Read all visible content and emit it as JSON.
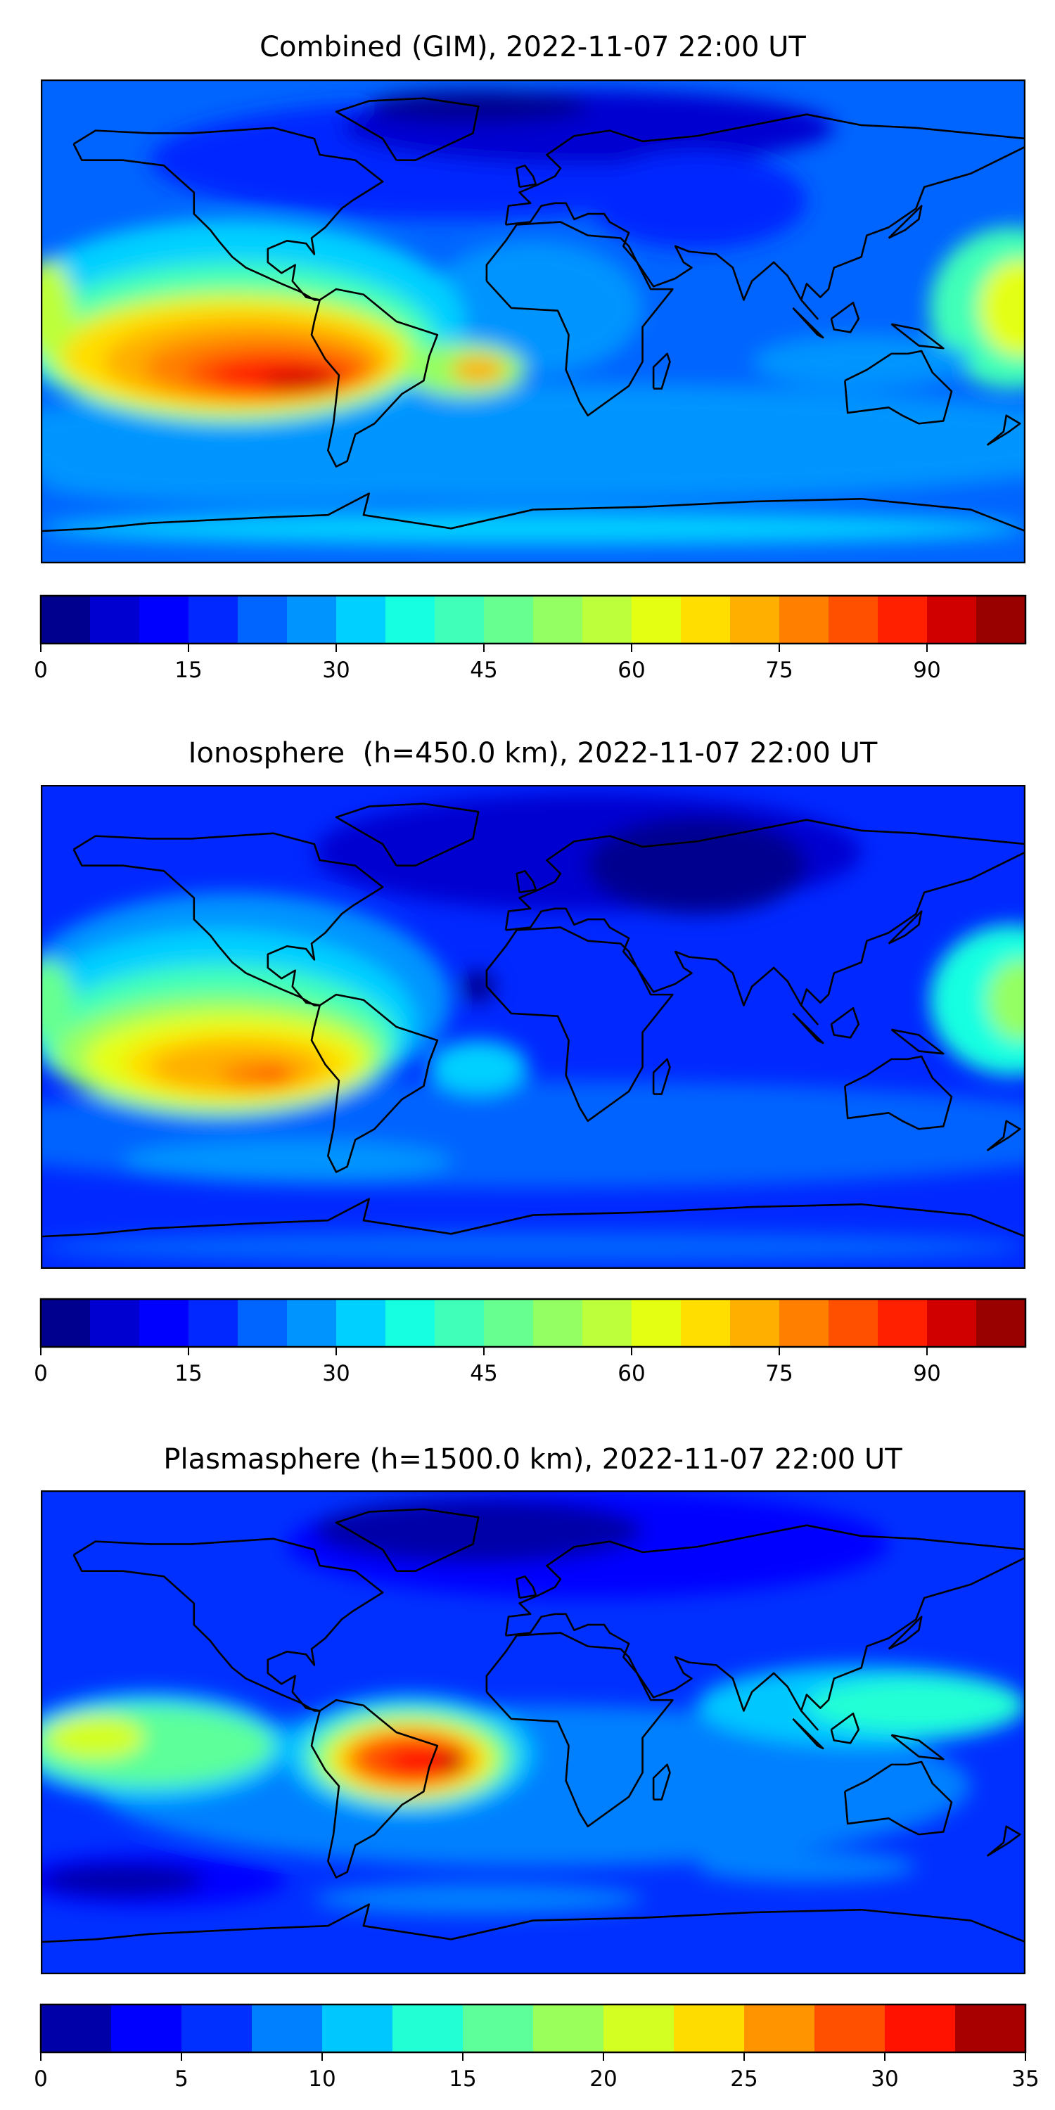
{
  "chart_data": [
    {
      "type": "heatmap",
      "title": "Combined (GIM), 2022-11-07 22:00 UT",
      "xlabel": "",
      "ylabel": "",
      "lon_range": [
        -180,
        180
      ],
      "lat_range": [
        -90,
        90
      ],
      "colorbar": {
        "vmin": 0,
        "vmax": 100,
        "step": 5,
        "ticks": [
          0,
          15,
          30,
          45,
          60,
          75,
          90
        ],
        "colors": [
          "#00008f",
          "#0000d0",
          "#0000ff",
          "#0028ff",
          "#0064ff",
          "#0094ff",
          "#00d0ff",
          "#16ffe1",
          "#40ffb8",
          "#66ff90",
          "#94ff62",
          "#bcff3a",
          "#e4ff12",
          "#ffde00",
          "#ffaf00",
          "#ff7f00",
          "#ff5000",
          "#ff2000",
          "#d00000",
          "#990000"
        ]
      },
      "features": "max ~95 over eastern Pacific/South America (~-100,-18); low (<10) over North Atlantic/Arctic"
    },
    {
      "type": "heatmap",
      "title": "Ionosphere  (h=450.0 km), 2022-11-07 22:00 UT",
      "xlabel": "",
      "ylabel": "",
      "lon_range": [
        -180,
        180
      ],
      "lat_range": [
        -90,
        90
      ],
      "colorbar": {
        "vmin": 0,
        "vmax": 100,
        "step": 5,
        "ticks": [
          0,
          15,
          30,
          45,
          60,
          75,
          90
        ],
        "colors": [
          "#00008f",
          "#0000d0",
          "#0000ff",
          "#0028ff",
          "#0064ff",
          "#0094ff",
          "#00d0ff",
          "#16ffe1",
          "#40ffb8",
          "#66ff90",
          "#94ff62",
          "#bcff3a",
          "#e4ff12",
          "#ffde00",
          "#ffaf00",
          "#ff7f00",
          "#ff5000",
          "#ff2000",
          "#d00000",
          "#990000"
        ]
      },
      "features": "max ~80 over eastern Pacific (~-110,-18); low over Eurasia/Arctic"
    },
    {
      "type": "heatmap",
      "title": "Plasmasphere (h=1500.0 km), 2022-11-07 22:00 UT",
      "xlabel": "",
      "ylabel": "",
      "lon_range": [
        -180,
        180
      ],
      "lat_range": [
        -90,
        90
      ],
      "colorbar": {
        "vmin": 0,
        "vmax": 35,
        "step": 2.5,
        "ticks": [
          0,
          5,
          10,
          15,
          20,
          25,
          30,
          35
        ],
        "colors": [
          "#0000a8",
          "#0000ff",
          "#0030ff",
          "#0080ff",
          "#00c8ff",
          "#22ffd4",
          "#5cff9a",
          "#9aff5a",
          "#d4ff22",
          "#ffdc00",
          "#ff9400",
          "#ff5000",
          "#ff1200",
          "#a80000"
        ]
      },
      "features": "max ~32 over Brazil (~-45,-10); cyan band across tropical Pacific"
    }
  ]
}
